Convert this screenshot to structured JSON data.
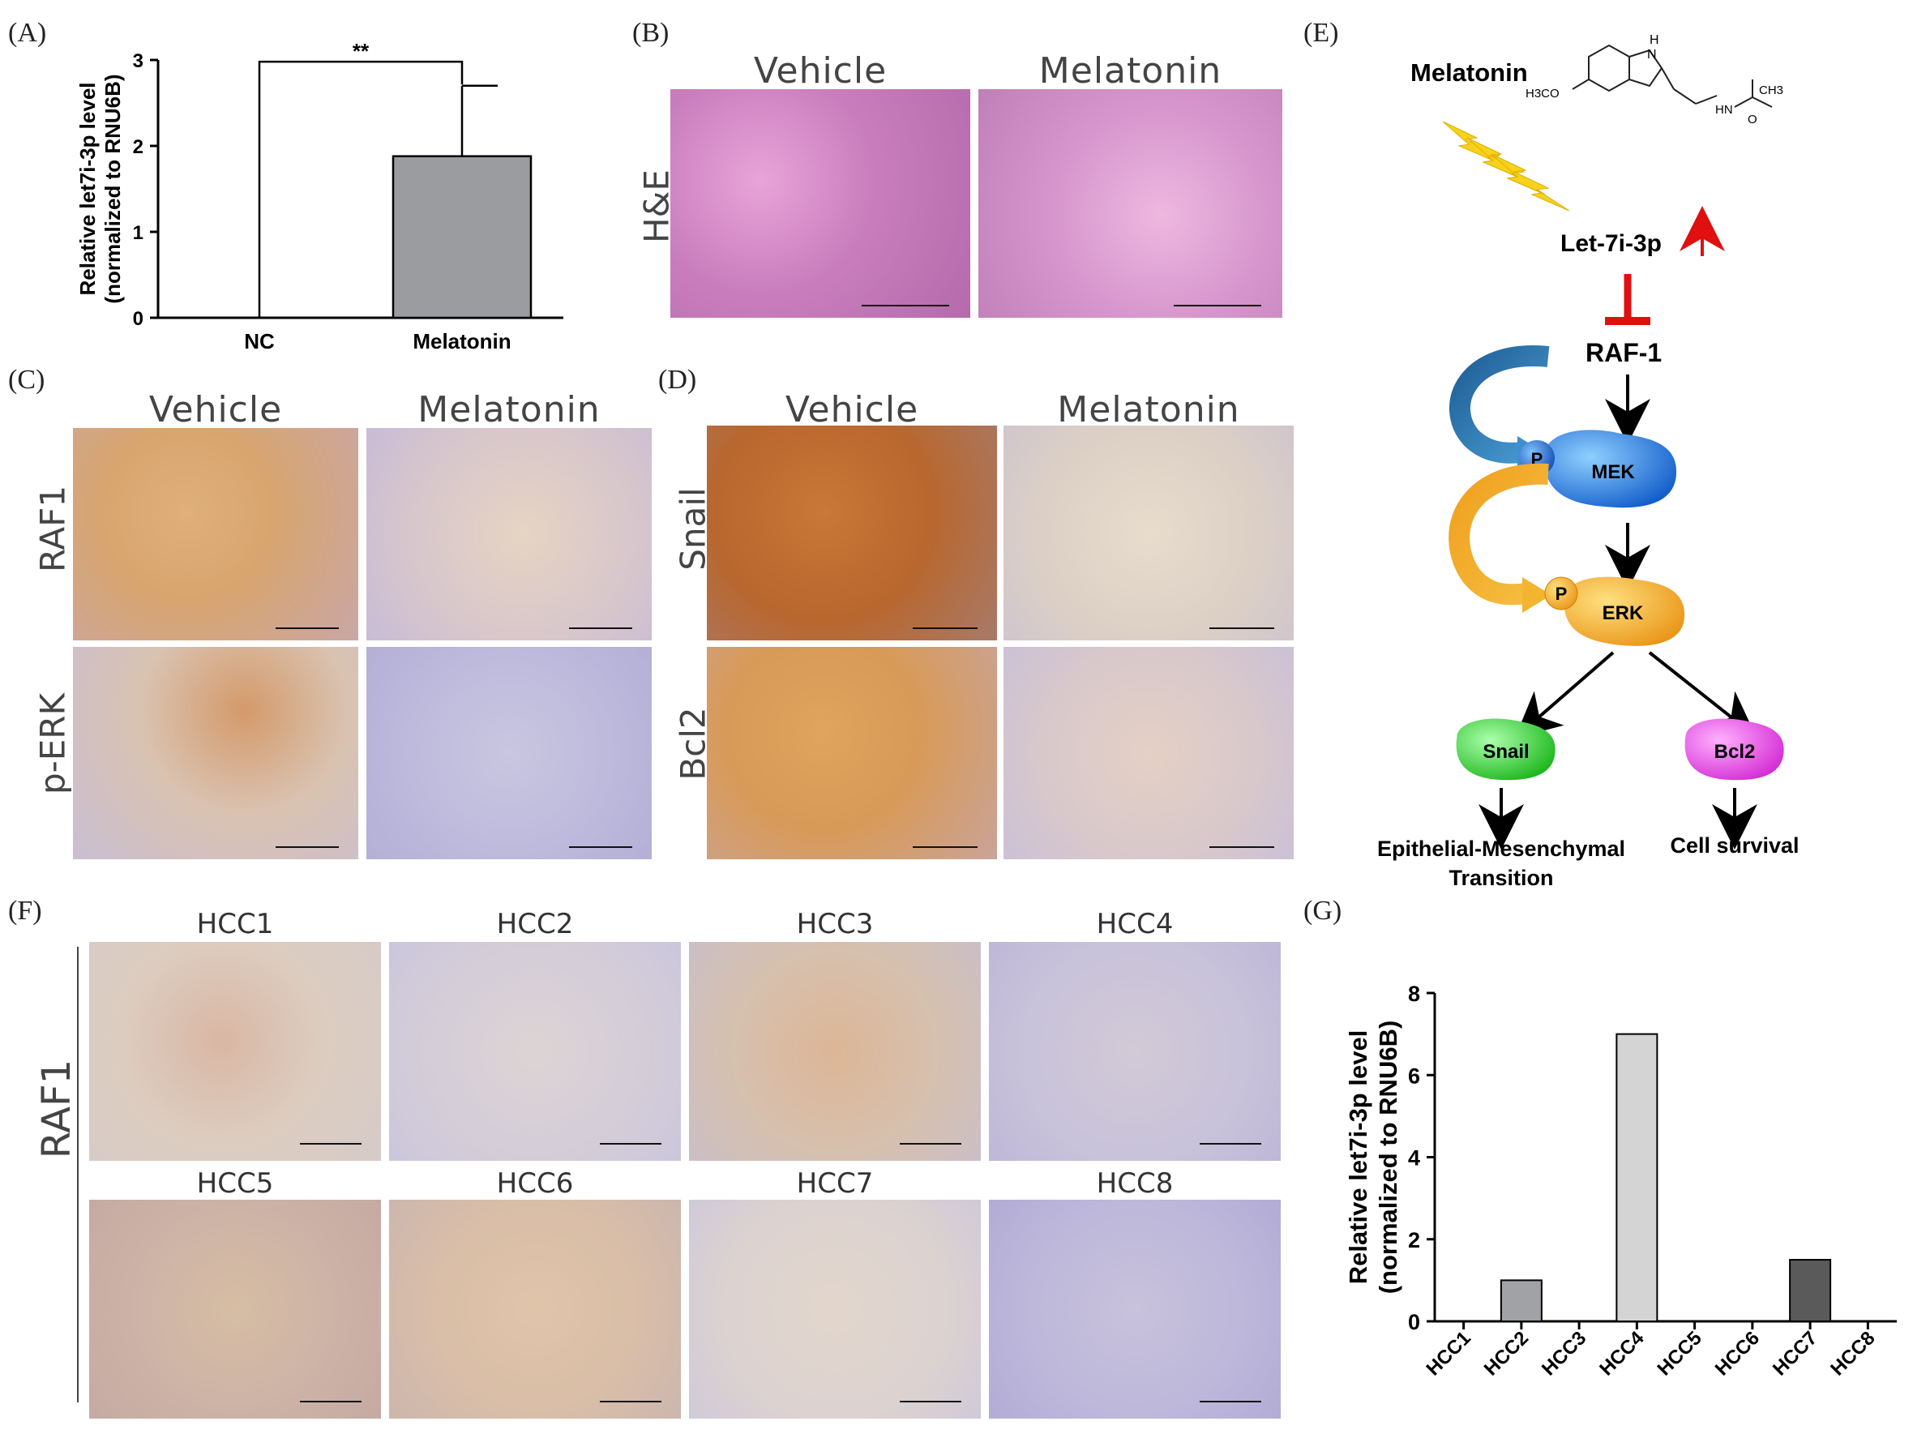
{
  "panel_labels": {
    "A": "(A)",
    "B": "(B)",
    "C": "(C)",
    "D": "(D)",
    "E": "(E)",
    "F": "(F)",
    "G": "(G)"
  },
  "colors": {
    "he_pink": "#d98fc9",
    "ihc_brown": "#c8864a",
    "ihc_blue": "#b8b6d6",
    "mek_blue": "#1a6fd8",
    "erk_orange": "#f0a820",
    "snail_green": "#22cc22",
    "bcl2_magenta": "#e055e0",
    "inhibit_red": "#e01010",
    "bar_gray": "#9a9ca0"
  },
  "panelB": {
    "columns": [
      "Vehicle",
      "Melatonin"
    ],
    "row": "H&E",
    "scale": "200 µm"
  },
  "panelC": {
    "columns": [
      "Vehicle",
      "Melatonin"
    ],
    "rows": [
      "RAF1",
      "p-ERK"
    ],
    "scale": "100 µm"
  },
  "panelD": {
    "columns": [
      "Vehicle",
      "Melatonin"
    ],
    "rows": [
      "Snail",
      "Bcl2"
    ],
    "scale": "100 µm"
  },
  "panelE": {
    "melatonin": "Melatonin",
    "mol_h": "H",
    "mol_n": "N",
    "mol_h3co": "H3CO",
    "mol_hn": "HN",
    "mol_ch3": "CH3",
    "mol_o": "O",
    "let7i": "Let-7i-3p",
    "raf1": "RAF-1",
    "p": "P",
    "mek": "MEK",
    "erk": "ERK",
    "snail": "Snail",
    "bcl2": "Bcl2",
    "emt_line1": "Epithelial-Mesenchymal",
    "emt_line2": "Transition",
    "survival": "Cell survival"
  },
  "panelF": {
    "row": "RAF1",
    "samples": [
      "HCC1",
      "HCC2",
      "HCC3",
      "HCC4",
      "HCC5",
      "HCC6",
      "HCC7",
      "HCC8"
    ],
    "scale": "100 µm"
  },
  "chart_data": [
    {
      "type": "bar",
      "categories": [
        "NC",
        "Melatonin"
      ],
      "values": [
        0,
        1.88
      ],
      "error": [
        0,
        0.82
      ],
      "ylabel": "Relative let7i-3p  level\n(normalized to RNU6B)",
      "ylim": [
        0,
        3
      ],
      "yticks": [
        0,
        1,
        2,
        3
      ],
      "annotation": "**",
      "colors": [
        "#ffffff",
        "#9a9ca0"
      ]
    },
    {
      "type": "bar",
      "categories": [
        "HCC1",
        "HCC2",
        "HCC3",
        "HCC4",
        "HCC5",
        "HCC6",
        "HCC7",
        "HCC8"
      ],
      "values": [
        0,
        1.0,
        0,
        7.0,
        0,
        0,
        1.5,
        0
      ],
      "ylabel": "Relative let7i-3p  level\n(normalized to RNU6B)",
      "ylim": [
        0,
        8
      ],
      "yticks": [
        0,
        2,
        4,
        6,
        8
      ],
      "colors": [
        "#ffffff",
        "#a0a2a6",
        "#ffffff",
        "#d4d4d4",
        "#ffffff",
        "#ffffff",
        "#5a5a5a",
        "#ffffff"
      ]
    }
  ]
}
